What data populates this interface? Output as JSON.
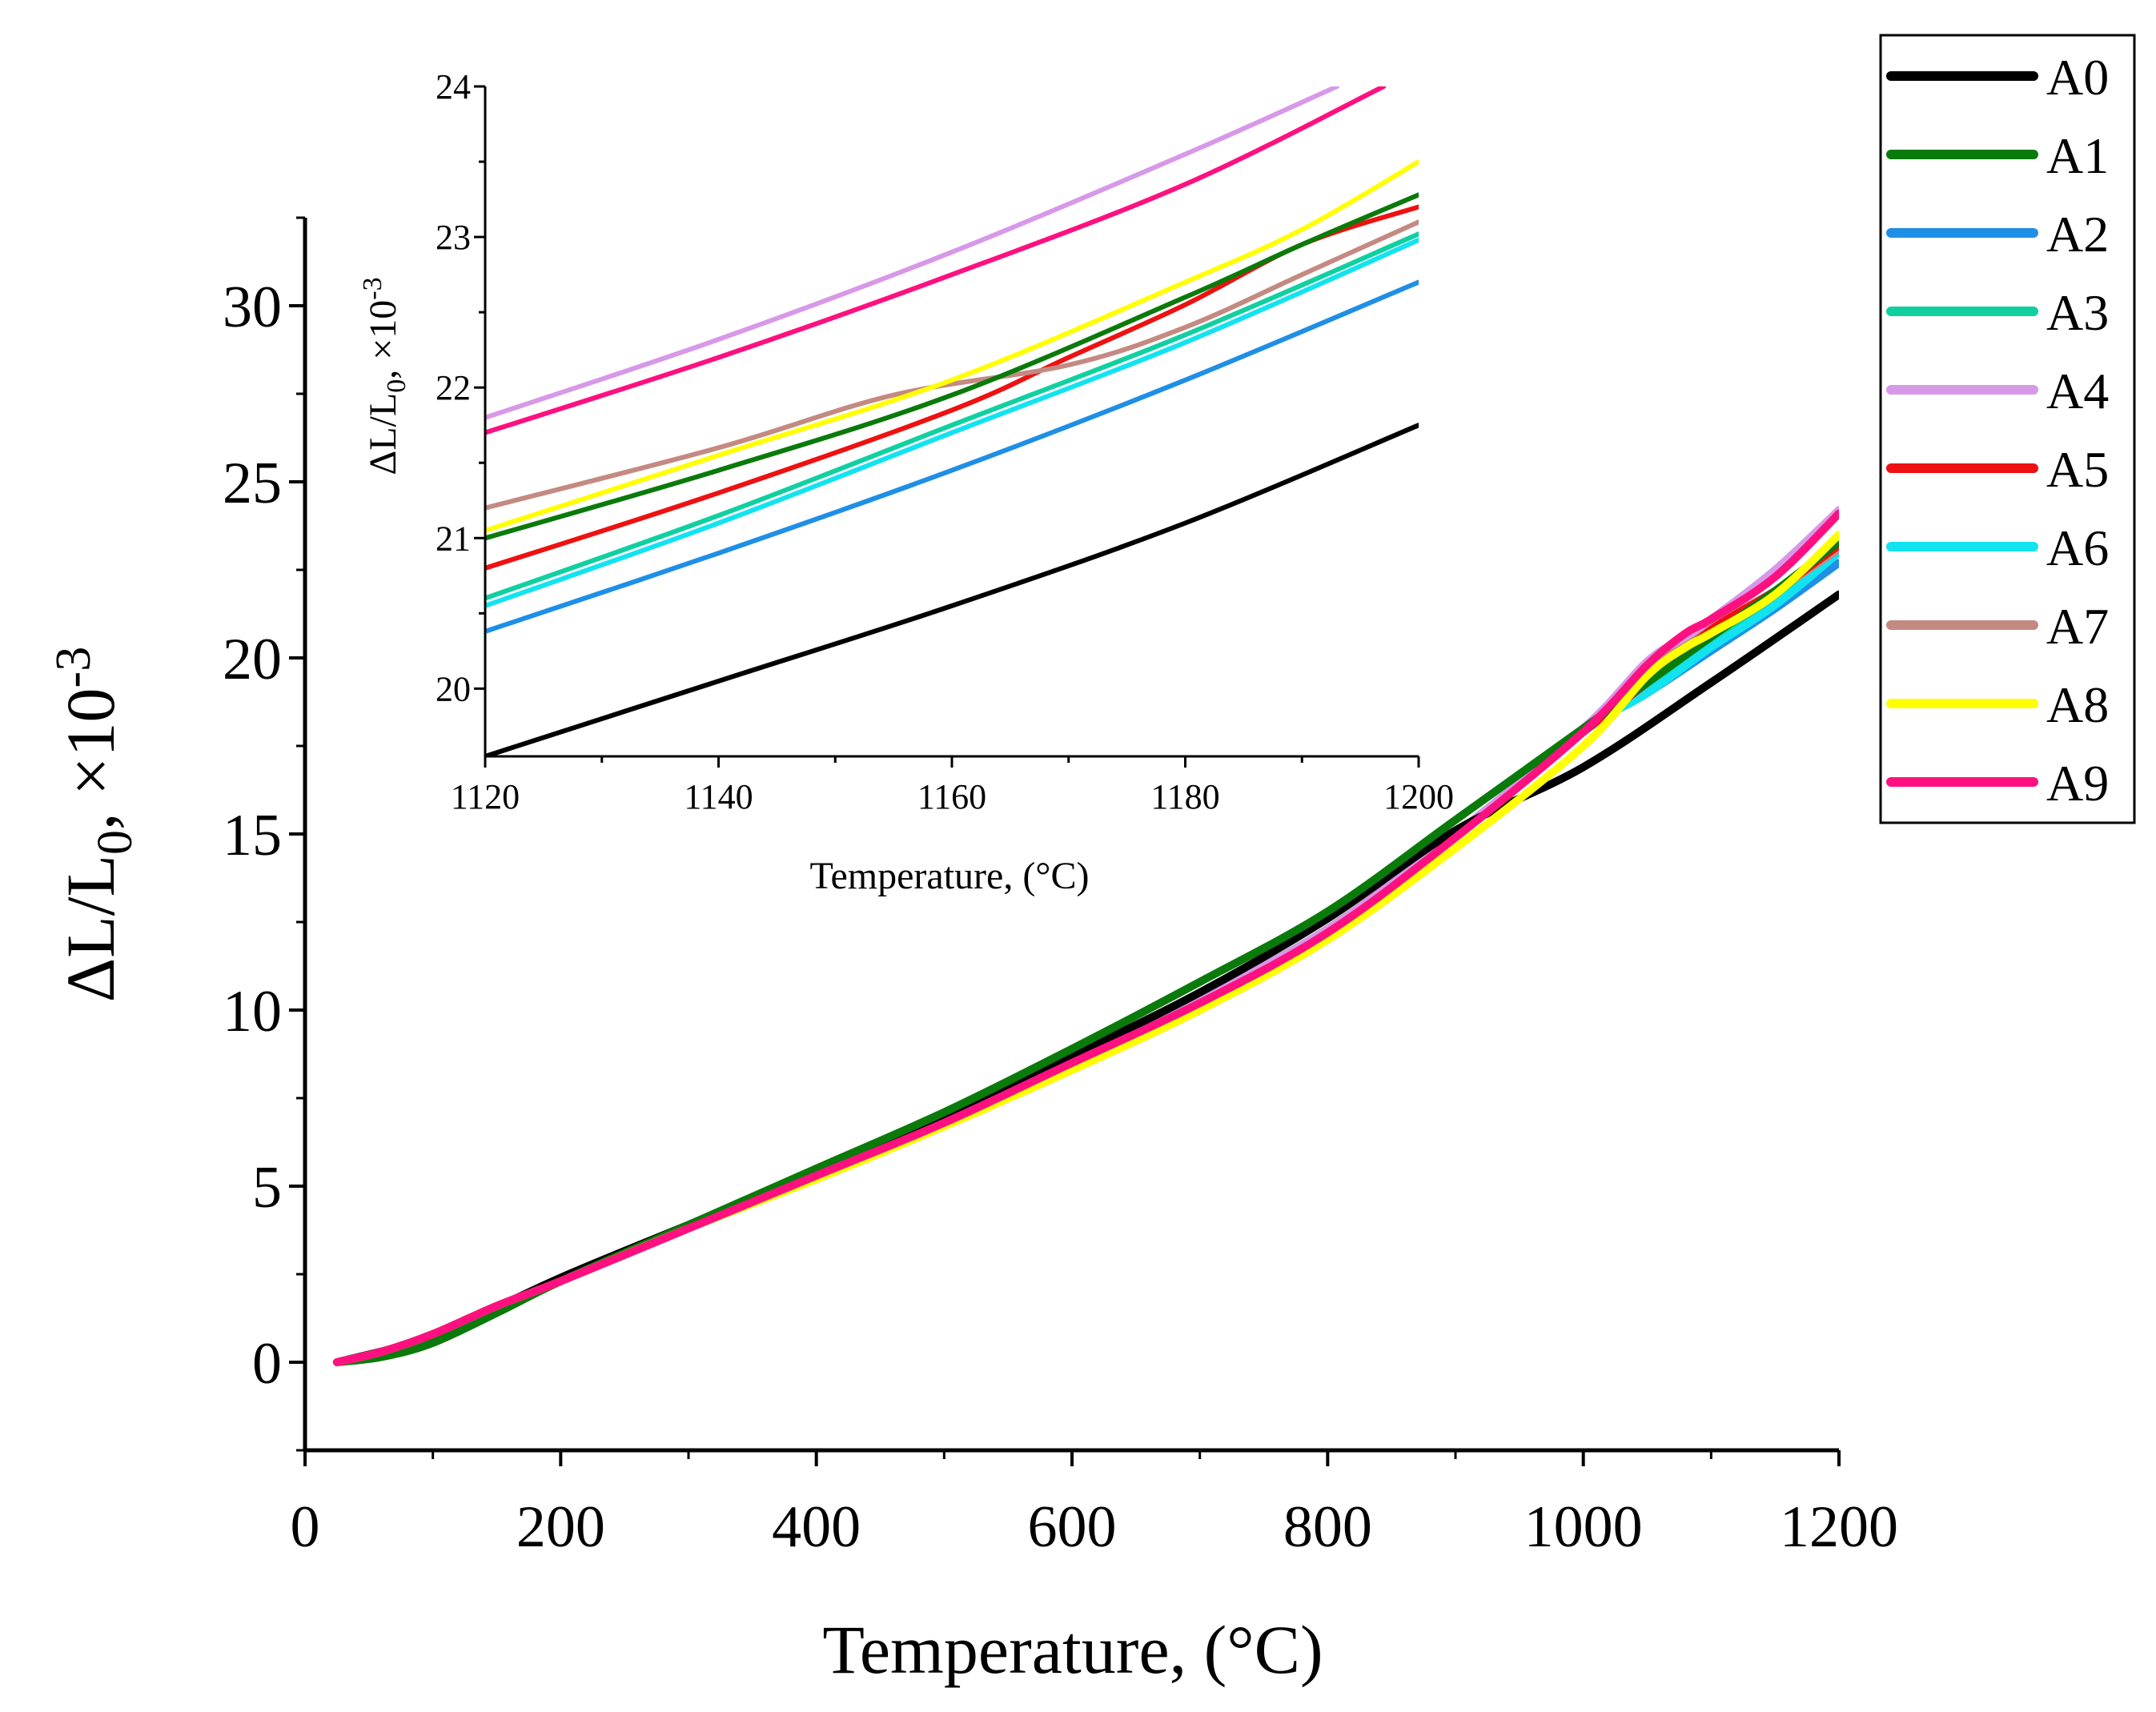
{
  "chart_data": [
    {
      "id": "main",
      "type": "line",
      "xlabel": "Temperature, (°C)",
      "ylabel_parts": [
        "ΔL/L",
        "0",
        ", ×10",
        "-3"
      ],
      "xlim": [
        0,
        1200
      ],
      "ylim": [
        -2.5,
        32.5
      ],
      "xticks": [
        0,
        200,
        400,
        600,
        800,
        1000,
        1200
      ],
      "xtick_labels": [
        "0",
        "200",
        "400",
        "600",
        "800",
        "1000",
        "1200"
      ],
      "yticks": [
        0,
        5,
        10,
        15,
        20,
        25,
        30
      ],
      "ytick_labels": [
        "0",
        "5",
        "10",
        "15",
        "20",
        "25",
        "30"
      ],
      "series": [
        {
          "name": "A0",
          "color": "#000000",
          "x": [
            25,
            100,
            200,
            300,
            400,
            500,
            600,
            700,
            800,
            900,
            1000,
            1100,
            1200
          ],
          "y": [
            0,
            0.75,
            2.4,
            3.9,
            5.4,
            7.0,
            8.7,
            10.5,
            12.6,
            15.1,
            16.9,
            19.3,
            21.8
          ]
        },
        {
          "name": "A1",
          "color": "#0a7a0a",
          "x": [
            25,
            60,
            100,
            150,
            200,
            300,
            400,
            500,
            600,
            700,
            800,
            900,
            1000,
            1050,
            1100,
            1150,
            1200
          ],
          "y": [
            0,
            0.15,
            0.55,
            1.4,
            2.3,
            3.9,
            5.5,
            7.1,
            8.9,
            10.8,
            12.8,
            15.4,
            18.0,
            19.3,
            20.6,
            21.9,
            23.3
          ]
        },
        {
          "name": "A2",
          "color": "#1f8fe6",
          "x": [
            25,
            60,
            100,
            150,
            200,
            300,
            400,
            500,
            600,
            700,
            800,
            900,
            1000,
            1050,
            1100,
            1150,
            1200
          ],
          "y": [
            0,
            0.3,
            0.8,
            1.6,
            2.3,
            3.8,
            5.3,
            6.8,
            8.5,
            10.3,
            12.3,
            15.0,
            17.9,
            19.0,
            20.2,
            21.4,
            22.7
          ]
        },
        {
          "name": "A3",
          "color": "#10d0a0",
          "x": [
            25,
            60,
            100,
            150,
            200,
            300,
            400,
            500,
            600,
            700,
            800,
            900,
            1000,
            1050,
            1100,
            1150,
            1200
          ],
          "y": [
            0,
            0.3,
            0.8,
            1.6,
            2.3,
            3.8,
            5.3,
            6.8,
            8.5,
            10.3,
            12.3,
            15.0,
            17.9,
            19.2,
            20.5,
            21.7,
            23.0
          ]
        },
        {
          "name": "A4",
          "color": "#d898e8",
          "x": [
            25,
            60,
            100,
            150,
            200,
            300,
            400,
            500,
            600,
            700,
            800,
            900,
            1000,
            1050,
            1080,
            1100,
            1150,
            1200
          ],
          "y": [
            0,
            0.3,
            0.8,
            1.6,
            2.3,
            3.8,
            5.3,
            6.8,
            8.5,
            10.3,
            12.3,
            15.0,
            18.0,
            19.9,
            20.6,
            21.1,
            22.5,
            24.2
          ]
        },
        {
          "name": "A5",
          "color": "#ee1111",
          "x": [
            25,
            60,
            100,
            150,
            200,
            300,
            400,
            500,
            600,
            700,
            800,
            900,
            1000,
            1050,
            1100,
            1150,
            1200
          ],
          "y": [
            0,
            0.3,
            0.8,
            1.6,
            2.3,
            3.8,
            5.3,
            6.8,
            8.5,
            10.3,
            12.3,
            15.0,
            17.9,
            19.3,
            20.8,
            21.9,
            23.2
          ]
        },
        {
          "name": "A6",
          "color": "#11e3f0",
          "x": [
            25,
            60,
            100,
            150,
            200,
            300,
            400,
            500,
            600,
            700,
            800,
            900,
            1000,
            1050,
            1100,
            1150,
            1200
          ],
          "y": [
            0,
            0.3,
            0.8,
            1.6,
            2.3,
            3.8,
            5.3,
            6.8,
            8.5,
            10.3,
            12.3,
            14.9,
            17.9,
            19.0,
            20.3,
            21.5,
            23.0
          ]
        },
        {
          "name": "A7",
          "color": "#c48a82",
          "x": [
            25,
            60,
            100,
            150,
            200,
            300,
            400,
            500,
            600,
            700,
            800,
            900,
            1000,
            1050,
            1080,
            1100,
            1150,
            1200
          ],
          "y": [
            0,
            0.3,
            0.8,
            1.6,
            2.3,
            3.8,
            5.3,
            6.8,
            8.5,
            10.3,
            12.3,
            15.0,
            17.9,
            19.6,
            20.5,
            20.9,
            21.9,
            23.1
          ]
        },
        {
          "name": "A8",
          "color": "#ffff00",
          "x": [
            25,
            60,
            100,
            150,
            200,
            300,
            400,
            500,
            600,
            700,
            800,
            900,
            1000,
            1050,
            1080,
            1100,
            1150,
            1200
          ],
          "y": [
            0,
            0.3,
            0.8,
            1.6,
            2.3,
            3.8,
            5.2,
            6.7,
            8.3,
            10.0,
            12.0,
            14.6,
            17.5,
            19.5,
            20.3,
            20.7,
            21.8,
            23.5
          ]
        },
        {
          "name": "A9",
          "color": "#ff1080",
          "x": [
            25,
            60,
            100,
            150,
            200,
            300,
            400,
            500,
            600,
            700,
            800,
            900,
            1000,
            1050,
            1080,
            1100,
            1150,
            1200
          ],
          "y": [
            0,
            0.3,
            0.8,
            1.6,
            2.3,
            3.8,
            5.3,
            6.8,
            8.5,
            10.2,
            12.2,
            14.9,
            17.9,
            19.8,
            20.7,
            21.1,
            22.3,
            24.1
          ]
        }
      ]
    },
    {
      "id": "inset",
      "type": "line",
      "xlabel": "Temperature, (°C)",
      "ylabel_parts": [
        "ΔL/L",
        "0",
        ", ×10",
        "-3"
      ],
      "xlim": [
        1120,
        1200
      ],
      "ylim": [
        19.55,
        24
      ],
      "xticks": [
        1120,
        1140,
        1160,
        1180,
        1200
      ],
      "xtick_labels": [
        "1120",
        "1140",
        "1160",
        "1180",
        "1200"
      ],
      "yticks": [
        20,
        21,
        22,
        23,
        24
      ],
      "ytick_labels": [
        "20",
        "21",
        "22",
        "23",
        "24"
      ],
      "series": [
        {
          "name": "A0",
          "color": "#000000",
          "x": [
            1120,
            1140,
            1160,
            1180,
            1200
          ],
          "y": [
            19.55,
            20.05,
            20.55,
            21.1,
            21.75
          ]
        },
        {
          "name": "A1",
          "color": "#0a7a0a",
          "x": [
            1120,
            1140,
            1160,
            1180,
            1190,
            1200
          ],
          "y": [
            21.0,
            21.45,
            21.95,
            22.6,
            22.95,
            23.28
          ]
        },
        {
          "name": "A2",
          "color": "#1f8fe6",
          "x": [
            1120,
            1140,
            1160,
            1180,
            1200
          ],
          "y": [
            20.38,
            20.9,
            21.45,
            22.05,
            22.7
          ]
        },
        {
          "name": "A3",
          "color": "#10d0a0",
          "x": [
            1120,
            1140,
            1160,
            1180,
            1200
          ],
          "y": [
            20.6,
            21.15,
            21.75,
            22.35,
            23.02
          ]
        },
        {
          "name": "A4",
          "color": "#d898e8",
          "x": [
            1120,
            1140,
            1160,
            1180,
            1193
          ],
          "y": [
            21.8,
            22.32,
            22.9,
            23.55,
            24.0
          ]
        },
        {
          "name": "A5",
          "color": "#ee1111",
          "x": [
            1120,
            1140,
            1160,
            1170,
            1180,
            1190,
            1200
          ],
          "y": [
            20.8,
            21.3,
            21.85,
            22.2,
            22.55,
            22.95,
            23.2
          ]
        },
        {
          "name": "A6",
          "color": "#11e3f0",
          "x": [
            1120,
            1140,
            1160,
            1180,
            1200
          ],
          "y": [
            20.55,
            21.1,
            21.7,
            22.3,
            22.98
          ]
        },
        {
          "name": "A7",
          "color": "#c48a82",
          "x": [
            1120,
            1140,
            1155,
            1170,
            1180,
            1190,
            1200
          ],
          "y": [
            21.2,
            21.6,
            21.95,
            22.15,
            22.4,
            22.75,
            23.1
          ]
        },
        {
          "name": "A8",
          "color": "#ffff00",
          "x": [
            1120,
            1140,
            1160,
            1180,
            1190,
            1200
          ],
          "y": [
            21.05,
            21.55,
            22.05,
            22.7,
            23.05,
            23.5
          ]
        },
        {
          "name": "A9",
          "color": "#ff1080",
          "x": [
            1120,
            1140,
            1160,
            1180,
            1197
          ],
          "y": [
            21.7,
            22.2,
            22.75,
            23.35,
            24.0
          ]
        }
      ]
    }
  ]
}
